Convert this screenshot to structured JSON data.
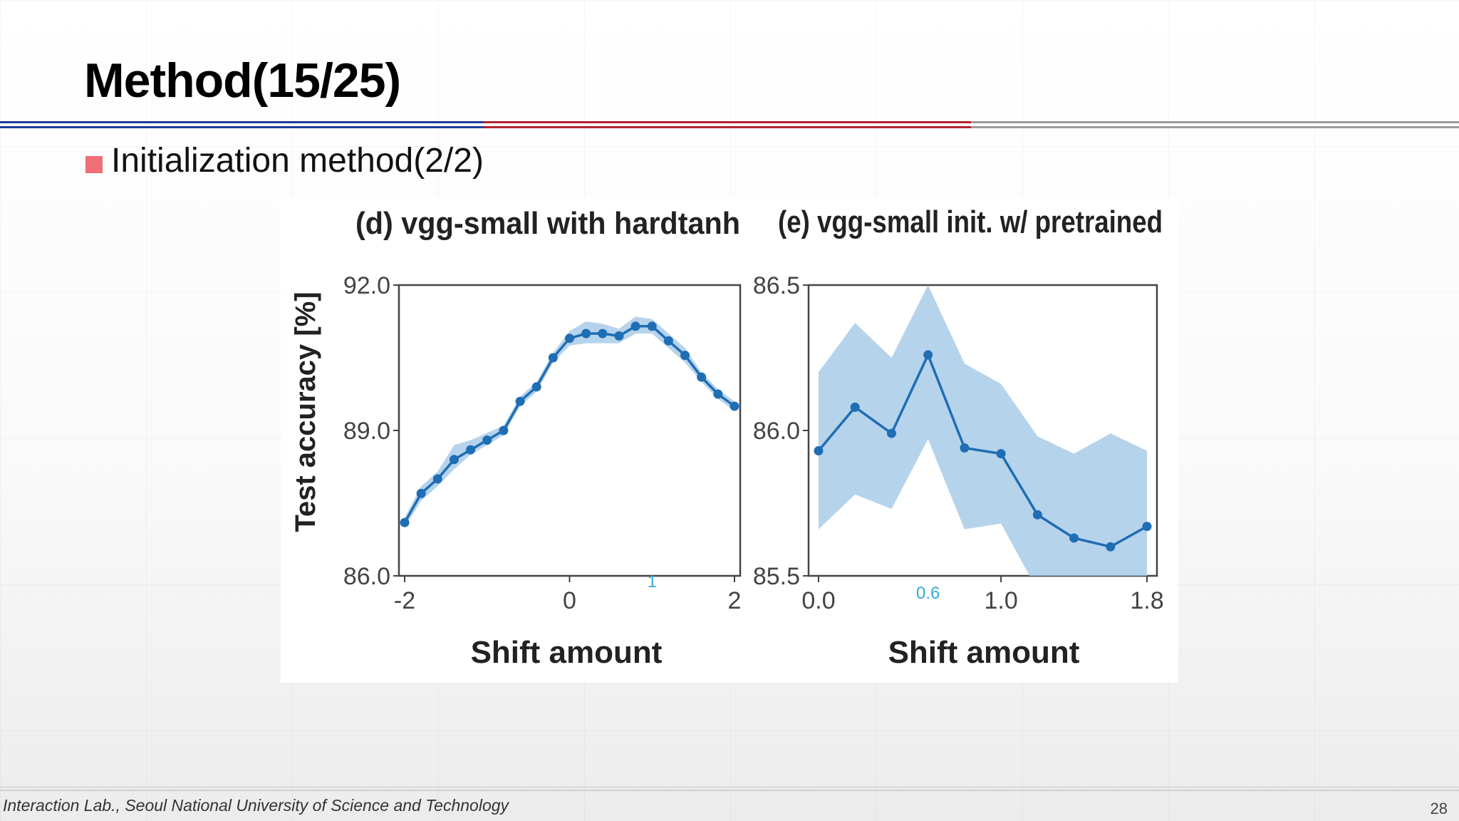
{
  "slide": {
    "title": "Method(15/25)",
    "bullet": "Initialization method(2/2)",
    "footer": "Interaction Lab., Seoul National University of Science and Technology",
    "page_number": "28"
  },
  "colors": {
    "line": "#1f6db3",
    "band": "#a9cbe9",
    "bullet": "#f06e76",
    "overlay_label": "#35a9d6"
  },
  "chart_data": [
    {
      "type": "line",
      "title": "(d) vgg-small with hardtanh",
      "xlabel": "Shift amount",
      "ylabel": "Test accuracy [%]",
      "xlim": [
        -2,
        2
      ],
      "ylim": [
        86.0,
        92.0
      ],
      "xticks": [
        "-2",
        "0",
        "2"
      ],
      "yticks": [
        "86.0",
        "89.0",
        "92.0"
      ],
      "overlay_label": {
        "text": "1",
        "x": 1
      },
      "series": [
        {
          "x": [
            -2.0,
            -1.8,
            -1.6,
            -1.4,
            -1.2,
            -1.0,
            -0.8,
            -0.6,
            -0.4,
            -0.2,
            0.0,
            0.2,
            0.4,
            0.6,
            0.8,
            1.0,
            1.2,
            1.4,
            1.6,
            1.8,
            2.0
          ],
          "y": [
            87.1,
            87.7,
            88.0,
            88.4,
            88.6,
            88.8,
            89.0,
            89.6,
            89.9,
            90.5,
            90.9,
            91.0,
            91.0,
            90.95,
            91.15,
            91.15,
            90.85,
            90.55,
            90.1,
            89.75,
            89.5
          ],
          "lower": [
            87.0,
            87.55,
            87.85,
            88.2,
            88.5,
            88.7,
            88.9,
            89.5,
            89.8,
            90.4,
            90.75,
            90.8,
            90.8,
            90.8,
            91.0,
            91.0,
            90.7,
            90.4,
            90.0,
            89.65,
            89.4
          ],
          "upper": [
            87.2,
            87.85,
            88.15,
            88.7,
            88.8,
            88.95,
            89.1,
            89.7,
            90.0,
            90.6,
            91.05,
            91.25,
            91.2,
            91.1,
            91.35,
            91.3,
            91.0,
            90.7,
            90.2,
            89.85,
            89.6
          ]
        }
      ]
    },
    {
      "type": "line",
      "title": "(e) vgg-small init. w/ pretrained",
      "xlabel": "Shift amount",
      "ylabel": "",
      "xlim": [
        0.0,
        1.8
      ],
      "ylim": [
        85.5,
        86.5
      ],
      "xticks": [
        "0.0",
        "1.0",
        "1.8"
      ],
      "yticks": [
        "85.5",
        "86.0",
        "86.5"
      ],
      "overlay_label": {
        "text": "0.6",
        "x": 0.6
      },
      "series": [
        {
          "x": [
            0.0,
            0.2,
            0.4,
            0.6,
            0.8,
            1.0,
            1.2,
            1.4,
            1.6,
            1.8
          ],
          "y": [
            85.93,
            86.08,
            85.99,
            86.26,
            85.94,
            85.92,
            85.71,
            85.63,
            85.6,
            85.67
          ],
          "lower": [
            85.66,
            85.78,
            85.73,
            85.97,
            85.66,
            85.68,
            85.45,
            85.45,
            85.45,
            85.5
          ],
          "upper": [
            86.2,
            86.37,
            86.25,
            86.5,
            86.23,
            86.16,
            85.98,
            85.92,
            85.99,
            85.93
          ]
        }
      ]
    }
  ]
}
